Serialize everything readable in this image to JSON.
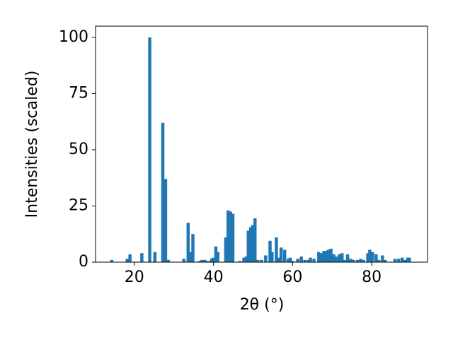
{
  "chart_data": {
    "type": "bar",
    "color": "#1f77b4",
    "xlabel": "2θ (°)",
    "ylabel": "Intensities (scaled)",
    "x": [
      14.3,
      18.2,
      18.9,
      21.9,
      23.9,
      25.2,
      27.2,
      27.9,
      28.6,
      32.5,
      33.6,
      34.1,
      34.8,
      36.4,
      37.1,
      37.8,
      38.6,
      39.5,
      39.9,
      40.6,
      41.1,
      43.1,
      43.7,
      44.3,
      44.9,
      46.7,
      47.7,
      48.3,
      48.8,
      49.4,
      49.9,
      50.5,
      51.2,
      52.1,
      53.2,
      54.3,
      54.8,
      55.9,
      56.4,
      57.1,
      58.0,
      58.9,
      59.4,
      60.1,
      61.3,
      62.2,
      63.1,
      64.0,
      64.5,
      65.4,
      66.6,
      67.2,
      67.9,
      68.4,
      69.0,
      69.7,
      70.4,
      71.1,
      71.8,
      72.5,
      73.1,
      73.9,
      74.7,
      75.4,
      76.4,
      77.2,
      77.9,
      79.0,
      79.5,
      80.2,
      81.1,
      81.8,
      82.7,
      83.4,
      85.9,
      86.8,
      87.7,
      88.4,
      89.1,
      89.5
    ],
    "values": [
      1,
      1.5,
      3.5,
      4,
      100,
      4.5,
      62,
      37,
      1,
      1.5,
      17.5,
      4.5,
      12.5,
      0.5,
      1,
      1,
      0.5,
      1.5,
      2,
      7,
      4.5,
      11,
      23,
      22.5,
      21.5,
      0.5,
      2,
      2.5,
      14,
      15.5,
      16.5,
      19.5,
      1,
      1,
      3,
      9.5,
      4.5,
      11,
      2,
      6.5,
      5.5,
      1.5,
      2,
      0.5,
      1.5,
      2.5,
      1,
      1,
      2,
      1.5,
      4.5,
      4,
      5,
      5,
      5.5,
      6,
      3.5,
      2.5,
      3.5,
      4,
      1,
      3.5,
      1.5,
      1,
      1,
      1.5,
      1,
      4,
      5.5,
      4.5,
      3.5,
      1,
      3,
      1,
      1.5,
      1.5,
      2,
      1,
      2,
      2
    ],
    "xlim": [
      10.2,
      94.1
    ],
    "ylim": [
      0,
      105
    ],
    "xticks": [
      20,
      40,
      60,
      80
    ],
    "yticks": [
      0,
      25,
      50,
      75,
      100
    ],
    "grid": false
  }
}
